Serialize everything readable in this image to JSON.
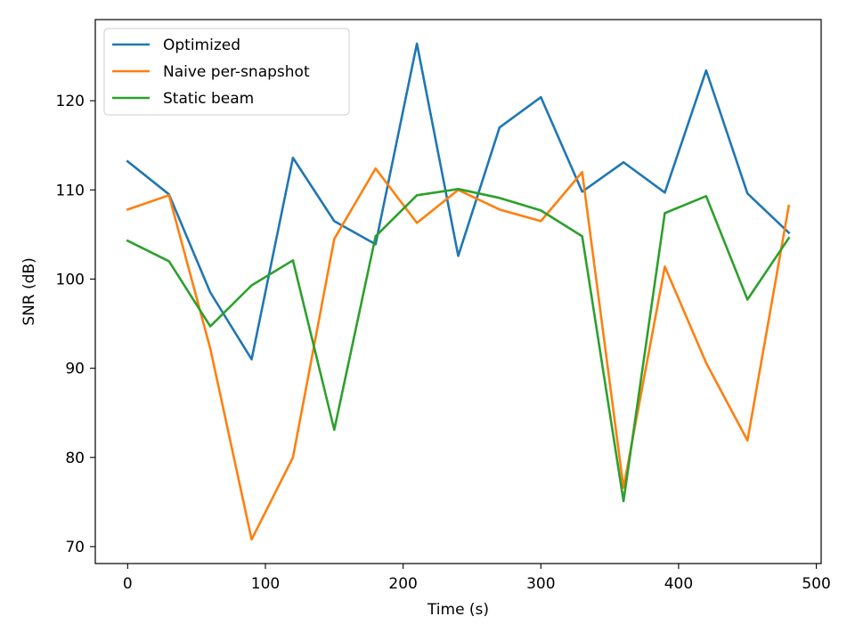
{
  "chart_data": {
    "type": "line",
    "title": "",
    "xlabel": "Time (s)",
    "ylabel": "SNR (dB)",
    "xlim": [
      -23.5,
      503.5
    ],
    "ylim": [
      68.1,
      129.1
    ],
    "xticks": [
      0,
      100,
      200,
      300,
      400,
      500
    ],
    "yticks": [
      70,
      80,
      90,
      100,
      110,
      120
    ],
    "x": [
      0,
      30,
      60,
      90,
      120,
      150,
      180,
      210,
      240,
      270,
      300,
      330,
      360,
      390,
      420,
      450,
      480
    ],
    "grid": false,
    "legend_position": "upper left",
    "series": [
      {
        "name": "Optimized",
        "color": "#1f77b4",
        "values": [
          113.2,
          109.5,
          98.5,
          91.0,
          113.6,
          106.5,
          103.9,
          126.4,
          102.6,
          117.0,
          120.4,
          109.8,
          113.1,
          109.7,
          123.4,
          109.6,
          105.2
        ]
      },
      {
        "name": "Naive per-snapshot",
        "color": "#ff7f0e",
        "values": [
          107.8,
          109.4,
          92.2,
          70.8,
          80.0,
          104.5,
          112.4,
          106.3,
          110.0,
          107.8,
          106.5,
          112.0,
          76.6,
          101.4,
          90.6,
          81.9,
          108.2
        ]
      },
      {
        "name": "Static beam",
        "color": "#2ca02c",
        "values": [
          104.3,
          102.0,
          94.7,
          99.3,
          102.1,
          83.1,
          104.8,
          109.4,
          110.1,
          109.1,
          107.7,
          104.8,
          75.1,
          107.4,
          109.3,
          97.7,
          104.6
        ]
      }
    ]
  }
}
